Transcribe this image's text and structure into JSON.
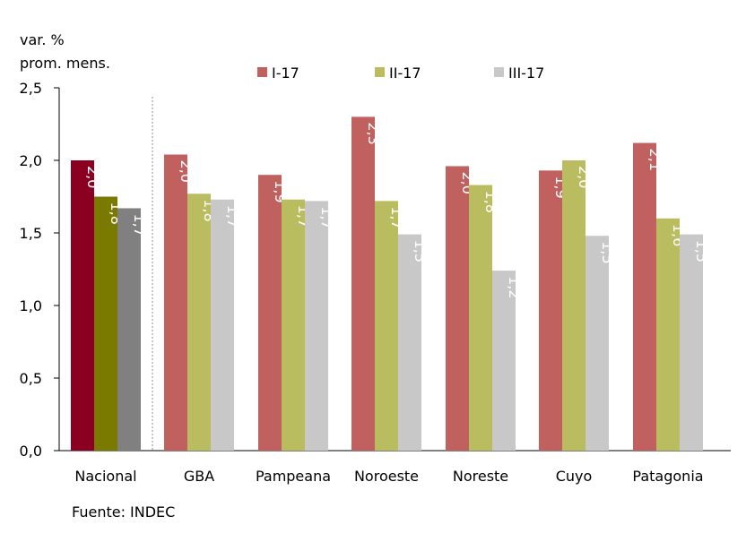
{
  "chart_data": {
    "type": "bar",
    "ylabel_lines": [
      "var. %",
      "prom. mens."
    ],
    "ylim": [
      0,
      2.5
    ],
    "yticks": [
      "0,0",
      "0,5",
      "1,0",
      "1,5",
      "2,0",
      "2,5"
    ],
    "ytick_values": [
      0,
      0.5,
      1.0,
      1.5,
      2.0,
      2.5
    ],
    "categories": [
      "Nacional",
      "GBA",
      "Pampeana",
      "Noroeste",
      "Noreste",
      "Cuyo",
      "Patagonia"
    ],
    "legend_position": "top",
    "series": [
      {
        "name": "I-17",
        "color": "#C0605F",
        "nacional_color": "#8B0021",
        "values": [
          2.0,
          2.04,
          1.9,
          2.3,
          1.96,
          1.93,
          2.12
        ],
        "labels": [
          "2,0",
          "2,0",
          "1,9",
          "2,3",
          "2,0",
          "1,9",
          "2,1"
        ]
      },
      {
        "name": "II-17",
        "color": "#B9BD5F",
        "nacional_color": "#7A7A00",
        "values": [
          1.75,
          1.77,
          1.73,
          1.72,
          1.83,
          2.0,
          1.6
        ],
        "labels": [
          "1,8",
          "1,8",
          "1,7",
          "1,7",
          "1,8",
          "2,0",
          "1,6"
        ]
      },
      {
        "name": "III-17",
        "color": "#C8C8C8",
        "nacional_color": "#808080",
        "values": [
          1.67,
          1.73,
          1.72,
          1.49,
          1.24,
          1.48,
          1.49
        ],
        "labels": [
          "1,7",
          "1,7",
          "1,7",
          "1,5",
          "1,2",
          "1,5",
          "1,5"
        ]
      }
    ],
    "grid": false,
    "source": "Fuente:  INDEC"
  }
}
